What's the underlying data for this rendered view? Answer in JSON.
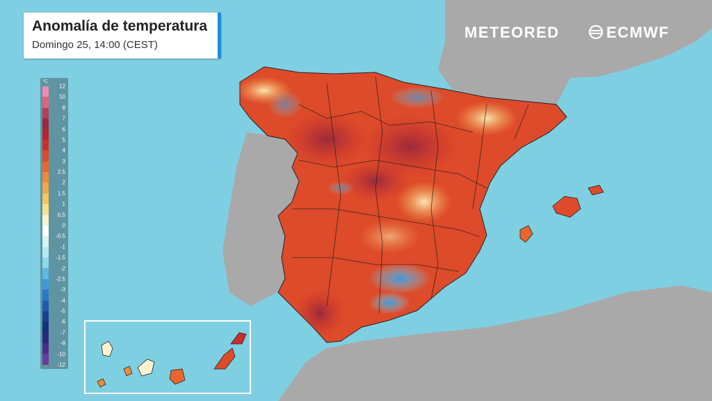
{
  "map": {
    "title": "Anomalía de temperatura",
    "subtitle": "Domingo 25, 14:00 (CEST)"
  },
  "legend": {
    "unit": "°C",
    "levels": [
      "12",
      "10",
      "8",
      "7",
      "6",
      "5",
      "4",
      "3",
      "2.5",
      "2",
      "1.5",
      "1",
      "0.5",
      "0",
      "-0.5",
      "-1",
      "-1.5",
      "-2",
      "-2.5",
      "-3",
      "-4",
      "-5",
      "-6",
      "-7",
      "-8",
      "-10",
      "-12"
    ],
    "colors": [
      "#f08ab0",
      "#d8677e",
      "#b04058",
      "#9a2a3e",
      "#b8232e",
      "#cc2f2a",
      "#dd4b2a",
      "#e8672e",
      "#ee8a3a",
      "#f2a64a",
      "#f6c460",
      "#f8e08a",
      "#fbf3d0",
      "#ffffff",
      "#d8f2f4",
      "#b6e8ee",
      "#8ad8ec",
      "#5fb8e4",
      "#3e98da",
      "#2a78c8",
      "#1f5aae",
      "#1a3f94",
      "#16307a",
      "#2a2a78",
      "#4a2e8a",
      "#6a3aa0",
      "#8a4ab6"
    ]
  },
  "logos": {
    "meteored": "METEORED",
    "ecmwf": "ECMWF"
  },
  "colors": {
    "sea": "#7fcfe2",
    "land_outside": "#a9a9a9",
    "title_accent": "#1b8fd6"
  }
}
